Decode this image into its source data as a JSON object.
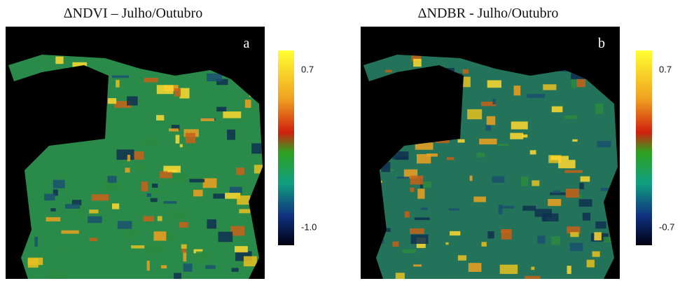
{
  "panels": [
    {
      "title": "ΔNDVI – Julho/Outubro",
      "label": "a",
      "colorbar": {
        "max_label": "0.7",
        "min_label": "-1.0"
      }
    },
    {
      "title": "ΔNDBR - Julho/Outubro",
      "label": "b",
      "colorbar": {
        "max_label": "0.7",
        "min_label": "-0.7"
      }
    }
  ]
}
